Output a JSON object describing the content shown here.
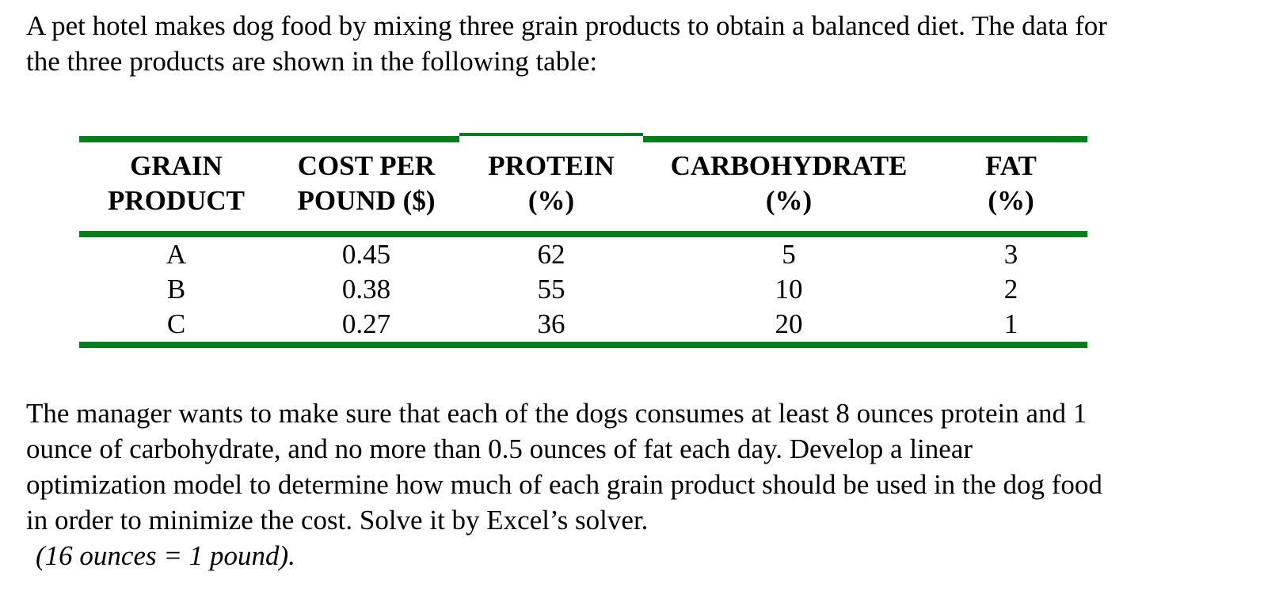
{
  "colors": {
    "table_border_green": "#087d1c",
    "text": "#000000",
    "background": "#ffffff"
  },
  "intro": {
    "line1": "A pet hotel makes dog food by mixing three grain products to obtain a balanced diet. The data for",
    "line2": "the three products are shown in the following table:"
  },
  "table": {
    "columns": [
      {
        "line1": "GRAIN",
        "line2": "PRODUCT"
      },
      {
        "line1": "COST PER",
        "line2": "POUND ($)"
      },
      {
        "line1": "PROTEIN",
        "line2": "(%)"
      },
      {
        "line1": "CARBOHYDRATE",
        "line2": "(%)"
      },
      {
        "line1": "FAT",
        "line2": "(%)"
      }
    ],
    "rows": [
      {
        "grain": "A",
        "cost": "0.45",
        "protein": "62",
        "carb": "5",
        "fat": "3"
      },
      {
        "grain": "B",
        "cost": "0.38",
        "protein": "55",
        "carb": "10",
        "fat": "2"
      },
      {
        "grain": "C",
        "cost": "0.27",
        "protein": "36",
        "carb": "20",
        "fat": "1"
      }
    ]
  },
  "body": {
    "line1": "The manager wants to make sure that each of the dogs consumes at least 8 ounces protein and 1",
    "line2": "ounce of carbohydrate, and no more than 0.5 ounces of fat each day. Develop a linear",
    "line3": "optimization model to determine how much of each grain product should be used in the dog food",
    "line4": "in order to minimize the cost. Solve it by Excel’s solver.",
    "note": "(16 ounces = 1 pound)."
  }
}
